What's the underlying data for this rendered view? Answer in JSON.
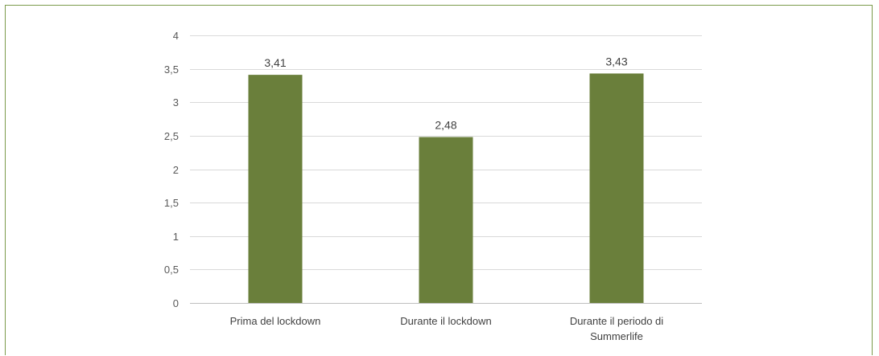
{
  "chart_data": {
    "type": "bar",
    "categories": [
      [
        "Prima del lockdown"
      ],
      [
        "Durante il lockdown"
      ],
      [
        "Durante il periodo di",
        "Summerlife"
      ]
    ],
    "values": [
      3.41,
      2.48,
      3.43
    ],
    "value_labels": [
      "3,41",
      "2,48",
      "3,43"
    ],
    "ylim": [
      0,
      4
    ],
    "yticks": [
      0,
      0.5,
      1,
      1.5,
      2,
      2.5,
      3,
      3.5,
      4
    ],
    "ytick_labels": [
      "0",
      "0,5",
      "1",
      "1,5",
      "2",
      "2,5",
      "3",
      "3,5",
      "4"
    ],
    "grid": true,
    "colors": {
      "bar": "#6a7f3b",
      "grid": "#d9d9d9",
      "frame": "#7a9a4a"
    }
  }
}
